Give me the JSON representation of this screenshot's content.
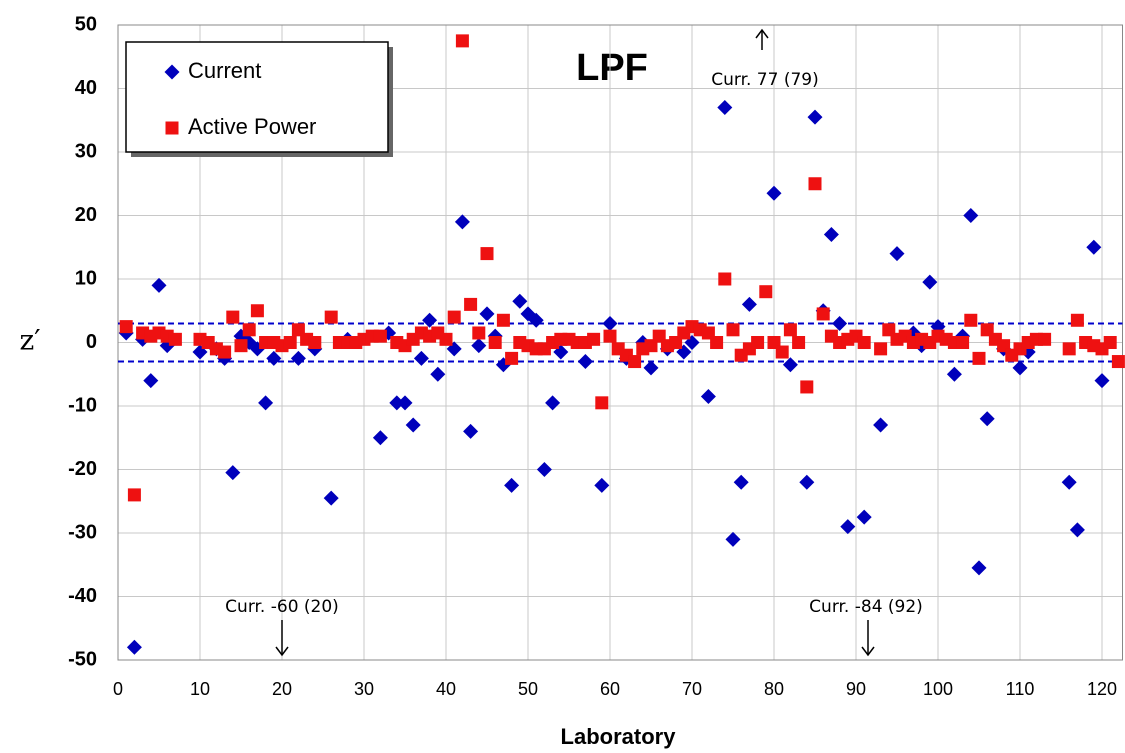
{
  "chart_data": {
    "type": "scatter",
    "title": "LPF",
    "x_label": "Laboratory",
    "y_label": "z′",
    "xlim": [
      0,
      122.5
    ],
    "ylim": [
      -50,
      50
    ],
    "xticks": [
      0,
      10,
      20,
      30,
      40,
      50,
      60,
      70,
      80,
      90,
      100,
      110,
      120
    ],
    "yticks": [
      -50,
      -40,
      -30,
      -20,
      -10,
      0,
      10,
      20,
      30,
      40,
      50
    ],
    "grid": true,
    "legend": "upper left",
    "reference_lines": [
      3,
      -3
    ],
    "reference_color": "#0000cc",
    "annotations": [
      "Curr. 77 (79)",
      "Curr. -60 (20)",
      "Curr. -84 (92)"
    ],
    "series": [
      {
        "name": "Current",
        "color": "#0000bb",
        "marker": "diamond",
        "x": [
          1,
          2,
          3,
          4,
          5,
          6,
          10,
          12,
          13,
          14,
          15,
          16,
          17,
          18,
          19,
          22,
          24,
          26,
          28,
          32,
          33,
          34,
          35,
          36,
          37,
          38,
          39,
          41,
          42,
          43,
          44,
          45,
          46,
          47,
          48,
          49,
          50,
          51,
          52,
          53,
          54,
          57,
          59,
          60,
          62,
          64,
          65,
          67,
          69,
          70,
          72,
          74,
          75,
          76,
          77,
          80,
          82,
          84,
          85,
          86,
          87,
          88,
          89,
          91,
          93,
          95,
          97,
          98,
          99,
          100,
          102,
          103,
          104,
          105,
          106,
          108,
          110,
          111,
          116,
          117,
          119,
          120
        ],
        "values": [
          1.5,
          -48,
          0.5,
          -6,
          9,
          -0.5,
          -1.5,
          -1,
          -2.5,
          -20.5,
          1,
          0,
          -1,
          -9.5,
          -2.5,
          -2.5,
          -1,
          -24.5,
          0.5,
          -15,
          1.5,
          -9.5,
          -9.5,
          -13,
          -2.5,
          3.5,
          -5,
          -1,
          19,
          -14,
          -0.5,
          4.5,
          1,
          -3.5,
          -22.5,
          6.5,
          4.5,
          3.5,
          -20,
          -9.5,
          -1.5,
          -3,
          -22.5,
          3,
          -2.5,
          0,
          -4,
          -1,
          -1.5,
          0,
          -8.5,
          37,
          -31,
          -22,
          6,
          23.5,
          -3.5,
          -22,
          35.5,
          5,
          17,
          3,
          -29,
          -27.5,
          -13,
          14,
          1.5,
          -0.5,
          9.5,
          2.5,
          -5,
          1,
          20,
          -35.5,
          -12,
          -1,
          -4,
          -1.5,
          -22,
          -29.5,
          15,
          -6
        ]
      },
      {
        "name": "Active Power",
        "color": "#ee1111",
        "marker": "square",
        "x": [
          1,
          2,
          3,
          4,
          5,
          6,
          7,
          10,
          11,
          12,
          13,
          14,
          15,
          16,
          17,
          18,
          19,
          20,
          21,
          22,
          23,
          24,
          26,
          27,
          28,
          29,
          30,
          31,
          32,
          34,
          35,
          36,
          37,
          38,
          39,
          40,
          41,
          42,
          43,
          44,
          45,
          46,
          47,
          48,
          49,
          50,
          51,
          52,
          53,
          54,
          55,
          56,
          57,
          58,
          59,
          60,
          61,
          62,
          63,
          64,
          65,
          66,
          67,
          68,
          69,
          70,
          71,
          72,
          73,
          74,
          75,
          76,
          77,
          78,
          79,
          80,
          81,
          82,
          83,
          84,
          85,
          86,
          87,
          88,
          89,
          90,
          91,
          93,
          94,
          95,
          96,
          97,
          98,
          99,
          100,
          101,
          102,
          103,
          104,
          105,
          106,
          107,
          108,
          109,
          110,
          111,
          112,
          113,
          116,
          117,
          118,
          119,
          120,
          121,
          122
        ],
        "values": [
          2.5,
          -24,
          1.5,
          1,
          1.5,
          1,
          0.5,
          0.5,
          0,
          -1,
          -1.5,
          4,
          -0.5,
          2,
          5,
          0,
          0,
          -0.5,
          0,
          2,
          0.5,
          0,
          4,
          0,
          0,
          0,
          0.5,
          1,
          1,
          0,
          -0.5,
          0.5,
          1.5,
          1,
          1.5,
          0.5,
          4,
          47.5,
          6,
          1.5,
          14,
          0,
          3.5,
          -2.5,
          0,
          -0.5,
          -1,
          -1,
          0,
          0.5,
          0.5,
          0,
          0,
          0.5,
          -9.5,
          1,
          -1,
          -2,
          -3,
          -1,
          -0.5,
          1,
          -0.5,
          0,
          1.5,
          2.5,
          2,
          1.5,
          0,
          10,
          2,
          -2,
          -1,
          0,
          8,
          0,
          -1.5,
          2,
          0,
          -7,
          25,
          4.5,
          1,
          0,
          0.5,
          1,
          0,
          -1,
          2,
          0.5,
          1,
          0,
          0.5,
          0,
          1,
          0.5,
          0,
          0,
          3.5,
          -2.5,
          2,
          0.5,
          -0.5,
          -2,
          -1,
          0,
          0.5,
          0.5,
          -1,
          3.5,
          0,
          -0.5,
          -1,
          0,
          -3
        ]
      }
    ]
  }
}
